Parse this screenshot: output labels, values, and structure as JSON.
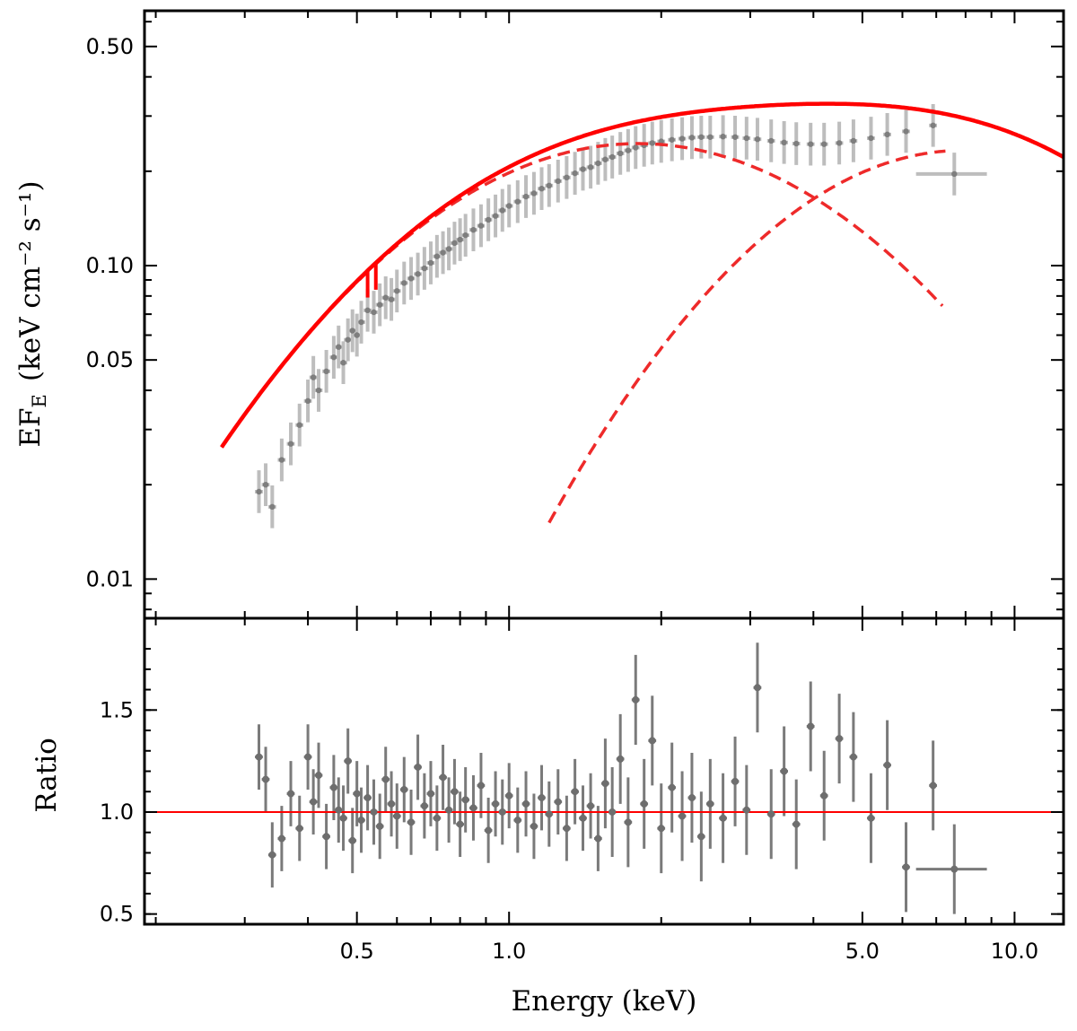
{
  "chart_data": [
    {
      "type": "scatter",
      "panel": "spectrum",
      "xscale": "log",
      "yscale": "log",
      "xlim": [
        0.19,
        12.5
      ],
      "ylim": [
        0.0075,
        0.65
      ],
      "ylabel_main": "EF",
      "ylabel_sub": "E",
      "ylabel_units": "(keV cm⁻² s⁻¹)",
      "yticks": [
        {
          "v": 0.5,
          "label": "0.50"
        },
        {
          "v": 0.1,
          "label": "0.10"
        },
        {
          "v": 0.05,
          "label": "0.05"
        },
        {
          "v": 0.01,
          "label": "0.01"
        }
      ],
      "colors": {
        "data": "#6e6e6e",
        "error": "#c0c0c0",
        "model": "#ff0000",
        "component": "#ee2a2a"
      },
      "legend": "none",
      "series": [
        {
          "name": "data",
          "points": [
            [
              0.32,
              0.019
            ],
            [
              0.33,
              0.02
            ],
            [
              0.34,
              0.017
            ],
            [
              0.355,
              0.024
            ],
            [
              0.37,
              0.027
            ],
            [
              0.385,
              0.031
            ],
            [
              0.4,
              0.037
            ],
            [
              0.41,
              0.044
            ],
            [
              0.42,
              0.04
            ],
            [
              0.435,
              0.046
            ],
            [
              0.45,
              0.051
            ],
            [
              0.46,
              0.055
            ],
            [
              0.47,
              0.049
            ],
            [
              0.48,
              0.058
            ],
            [
              0.49,
              0.062
            ],
            [
              0.5,
              0.06
            ],
            [
              0.51,
              0.066
            ],
            [
              0.525,
              0.072
            ],
            [
              0.54,
              0.071
            ],
            [
              0.555,
              0.075
            ],
            [
              0.57,
              0.079
            ],
            [
              0.585,
              0.078
            ],
            [
              0.6,
              0.083
            ],
            [
              0.62,
              0.088
            ],
            [
              0.64,
              0.091
            ],
            [
              0.66,
              0.094
            ],
            [
              0.68,
              0.098
            ],
            [
              0.7,
              0.102
            ],
            [
              0.72,
              0.107
            ],
            [
              0.74,
              0.11
            ],
            [
              0.76,
              0.113
            ],
            [
              0.78,
              0.118
            ],
            [
              0.8,
              0.121
            ],
            [
              0.82,
              0.125
            ],
            [
              0.85,
              0.13
            ],
            [
              0.88,
              0.134
            ],
            [
              0.91,
              0.14
            ],
            [
              0.94,
              0.144
            ],
            [
              0.97,
              0.15
            ],
            [
              1.0,
              0.155
            ],
            [
              1.04,
              0.16
            ],
            [
              1.08,
              0.166
            ],
            [
              1.12,
              0.17
            ],
            [
              1.16,
              0.176
            ],
            [
              1.2,
              0.18
            ],
            [
              1.25,
              0.186
            ],
            [
              1.3,
              0.191
            ],
            [
              1.35,
              0.197
            ],
            [
              1.4,
              0.203
            ],
            [
              1.45,
              0.206
            ],
            [
              1.5,
              0.212
            ],
            [
              1.55,
              0.218
            ],
            [
              1.6,
              0.222
            ],
            [
              1.66,
              0.228
            ],
            [
              1.72,
              0.233
            ],
            [
              1.78,
              0.238
            ],
            [
              1.85,
              0.242
            ],
            [
              1.92,
              0.246
            ],
            [
              2.0,
              0.249
            ],
            [
              2.1,
              0.252
            ],
            [
              2.2,
              0.254
            ],
            [
              2.3,
              0.256
            ],
            [
              2.4,
              0.257
            ],
            [
              2.5,
              0.257
            ],
            [
              2.65,
              0.258
            ],
            [
              2.8,
              0.257
            ],
            [
              2.95,
              0.255
            ],
            [
              3.1,
              0.253
            ],
            [
              3.3,
              0.25
            ],
            [
              3.5,
              0.247
            ],
            [
              3.7,
              0.245
            ],
            [
              3.95,
              0.244
            ],
            [
              4.2,
              0.244
            ],
            [
              4.5,
              0.246
            ],
            [
              4.8,
              0.25
            ],
            [
              5.2,
              0.255
            ],
            [
              5.6,
              0.262
            ],
            [
              6.1,
              0.268
            ],
            [
              6.9,
              0.28
            ],
            [
              7.6,
              0.196
            ]
          ]
        },
        {
          "name": "model_total",
          "style": "solid"
        },
        {
          "name": "component_soft",
          "style": "dashed"
        },
        {
          "name": "component_hard",
          "style": "dashed"
        }
      ]
    },
    {
      "type": "scatter",
      "panel": "ratio",
      "xscale": "log",
      "yscale": "linear",
      "xlim": [
        0.19,
        12.5
      ],
      "ylim": [
        0.45,
        1.95
      ],
      "xlabel": "Energy (keV)",
      "ylabel": "Ratio",
      "xticks": [
        {
          "v": 0.5,
          "label": "0.5"
        },
        {
          "v": 1.0,
          "label": "1.0"
        },
        {
          "v": 5.0,
          "label": "5.0"
        },
        {
          "v": 10.0,
          "label": "10.0"
        }
      ],
      "yticks": [
        {
          "v": 1.5,
          "label": "1.5"
        },
        {
          "v": 1.0,
          "label": "1.0"
        },
        {
          "v": 0.5,
          "label": "0.5"
        }
      ],
      "reference_line": 1.0,
      "series": [
        {
          "name": "ratio",
          "points": [
            [
              0.32,
              1.27
            ],
            [
              0.33,
              1.16
            ],
            [
              0.34,
              0.79
            ],
            [
              0.355,
              0.87
            ],
            [
              0.37,
              1.09
            ],
            [
              0.385,
              0.92
            ],
            [
              0.4,
              1.27
            ],
            [
              0.41,
              1.05
            ],
            [
              0.42,
              1.18
            ],
            [
              0.435,
              0.88
            ],
            [
              0.45,
              1.12
            ],
            [
              0.46,
              1.01
            ],
            [
              0.47,
              0.97
            ],
            [
              0.48,
              1.25
            ],
            [
              0.49,
              0.86
            ],
            [
              0.5,
              1.09
            ],
            [
              0.51,
              0.96
            ],
            [
              0.525,
              1.07
            ],
            [
              0.54,
              1.0
            ],
            [
              0.555,
              0.93
            ],
            [
              0.57,
              1.16
            ],
            [
              0.585,
              1.04
            ],
            [
              0.6,
              0.98
            ],
            [
              0.62,
              1.11
            ],
            [
              0.64,
              0.95
            ],
            [
              0.66,
              1.22
            ],
            [
              0.68,
              1.03
            ],
            [
              0.7,
              1.09
            ],
            [
              0.72,
              0.97
            ],
            [
              0.74,
              1.17
            ],
            [
              0.76,
              1.01
            ],
            [
              0.78,
              1.1
            ],
            [
              0.8,
              0.94
            ],
            [
              0.82,
              1.06
            ],
            [
              0.85,
              1.02
            ],
            [
              0.88,
              1.13
            ],
            [
              0.91,
              0.91
            ],
            [
              0.94,
              1.04
            ],
            [
              0.97,
              1.0
            ],
            [
              1.0,
              1.08
            ],
            [
              1.04,
              0.96
            ],
            [
              1.08,
              1.04
            ],
            [
              1.12,
              0.93
            ],
            [
              1.16,
              1.07
            ],
            [
              1.2,
              0.99
            ],
            [
              1.25,
              1.05
            ],
            [
              1.3,
              0.92
            ],
            [
              1.35,
              1.1
            ],
            [
              1.4,
              0.97
            ],
            [
              1.45,
              1.03
            ],
            [
              1.5,
              0.87
            ],
            [
              1.55,
              1.14
            ],
            [
              1.6,
              1.0
            ],
            [
              1.66,
              1.26
            ],
            [
              1.72,
              0.95
            ],
            [
              1.78,
              1.55
            ],
            [
              1.85,
              1.04
            ],
            [
              1.92,
              1.35
            ],
            [
              2.0,
              0.92
            ],
            [
              2.1,
              1.12
            ],
            [
              2.2,
              0.98
            ],
            [
              2.3,
              1.07
            ],
            [
              2.4,
              0.88
            ],
            [
              2.5,
              1.04
            ],
            [
              2.65,
              0.97
            ],
            [
              2.8,
              1.15
            ],
            [
              2.95,
              1.01
            ],
            [
              3.1,
              1.61
            ],
            [
              3.3,
              0.99
            ],
            [
              3.5,
              1.2
            ],
            [
              3.7,
              0.94
            ],
            [
              3.95,
              1.42
            ],
            [
              4.2,
              1.08
            ],
            [
              4.5,
              1.36
            ],
            [
              4.8,
              1.27
            ],
            [
              5.2,
              0.97
            ],
            [
              5.6,
              1.23
            ],
            [
              6.1,
              0.73
            ],
            [
              6.9,
              1.13
            ],
            [
              7.6,
              0.72
            ]
          ]
        }
      ]
    }
  ]
}
